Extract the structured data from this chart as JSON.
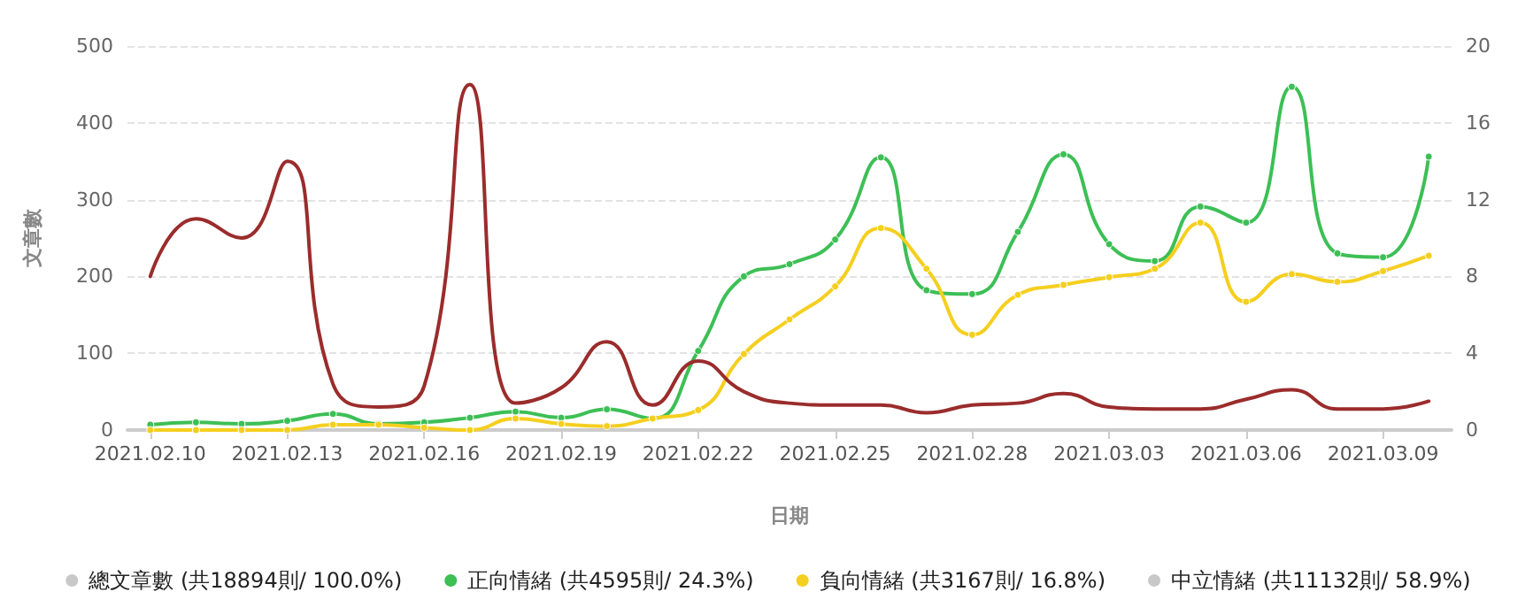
{
  "chart_data": {
    "type": "line",
    "xlabel": "日期",
    "ylabel": "文章數",
    "categories": [
      "2021.02.10",
      null,
      null,
      "2021.02.13",
      null,
      null,
      "2021.02.16",
      null,
      null,
      "2021.02.19",
      null,
      null,
      "2021.02.22",
      null,
      null,
      "2021.02.25",
      null,
      null,
      "2021.02.28",
      null,
      null,
      "2021.03.03",
      null,
      null,
      "2021.03.06",
      null,
      null,
      "2021.03.09",
      null
    ],
    "series": [
      {
        "name": "總文章數 (共18894則/ 100.0%)",
        "color": "#c8c8c8",
        "values": [
          null,
          null,
          null,
          null,
          null,
          null,
          null,
          null,
          null,
          null,
          null,
          null,
          null,
          null,
          null,
          null,
          null,
          null,
          null,
          null,
          null,
          null,
          null,
          null,
          null,
          null,
          null,
          null,
          null
        ]
      },
      {
        "name": "正向情緒 (共4595則/ 24.3%)",
        "color": "#3dbf55",
        "values": [
          7,
          10,
          8,
          12,
          21,
          8,
          10,
          16,
          24,
          16,
          27,
          15,
          103,
          200,
          216,
          248,
          355,
          182,
          177,
          258,
          359,
          242,
          220,
          291,
          270,
          447,
          230,
          225,
          356
        ]
      },
      {
        "name": "負向情緒 (共3167則/ 16.8%)",
        "color": "#f5cf1f",
        "values": [
          0,
          0,
          0,
          0,
          7,
          7,
          3,
          0,
          15,
          8,
          5,
          15,
          26,
          99,
          144,
          187,
          263,
          210,
          124,
          176,
          189,
          199,
          210,
          270,
          167,
          203,
          193,
          207,
          227
        ]
      },
      {
        "name": "中立情緒 (共11132則/ 58.9%)",
        "color": "#c8c8c8",
        "values": [
          null,
          null,
          null,
          null,
          null,
          null,
          null,
          null,
          null,
          null,
          null,
          null,
          null,
          null,
          null,
          null,
          null,
          null,
          null,
          null,
          null,
          null,
          null,
          null,
          null,
          null,
          null,
          null,
          null
        ]
      },
      {
        "color": "#9b2c2c",
        "axis": "y2",
        "marker": "none",
        "values": [
          8,
          11,
          10,
          14,
          2.4,
          1.2,
          2.3,
          18,
          1.4,
          2.2,
          4.6,
          1.3,
          3.6,
          2.0,
          1.4,
          1.3,
          1.3,
          0.9,
          1.3,
          1.4,
          1.9,
          1.2,
          1.1,
          1.1,
          1.6,
          2.1,
          1.1,
          1.1,
          1.5
        ]
      }
    ],
    "ylim": [
      0,
      500
    ],
    "yticks": [
      0,
      100,
      200,
      300,
      400,
      500
    ],
    "y2lim": [
      0,
      20
    ],
    "y2ticks": [
      0,
      4,
      8,
      12,
      16,
      20
    ],
    "grid": "y",
    "legend": "bottom",
    "marker": "circle",
    "line_style": "solid"
  }
}
